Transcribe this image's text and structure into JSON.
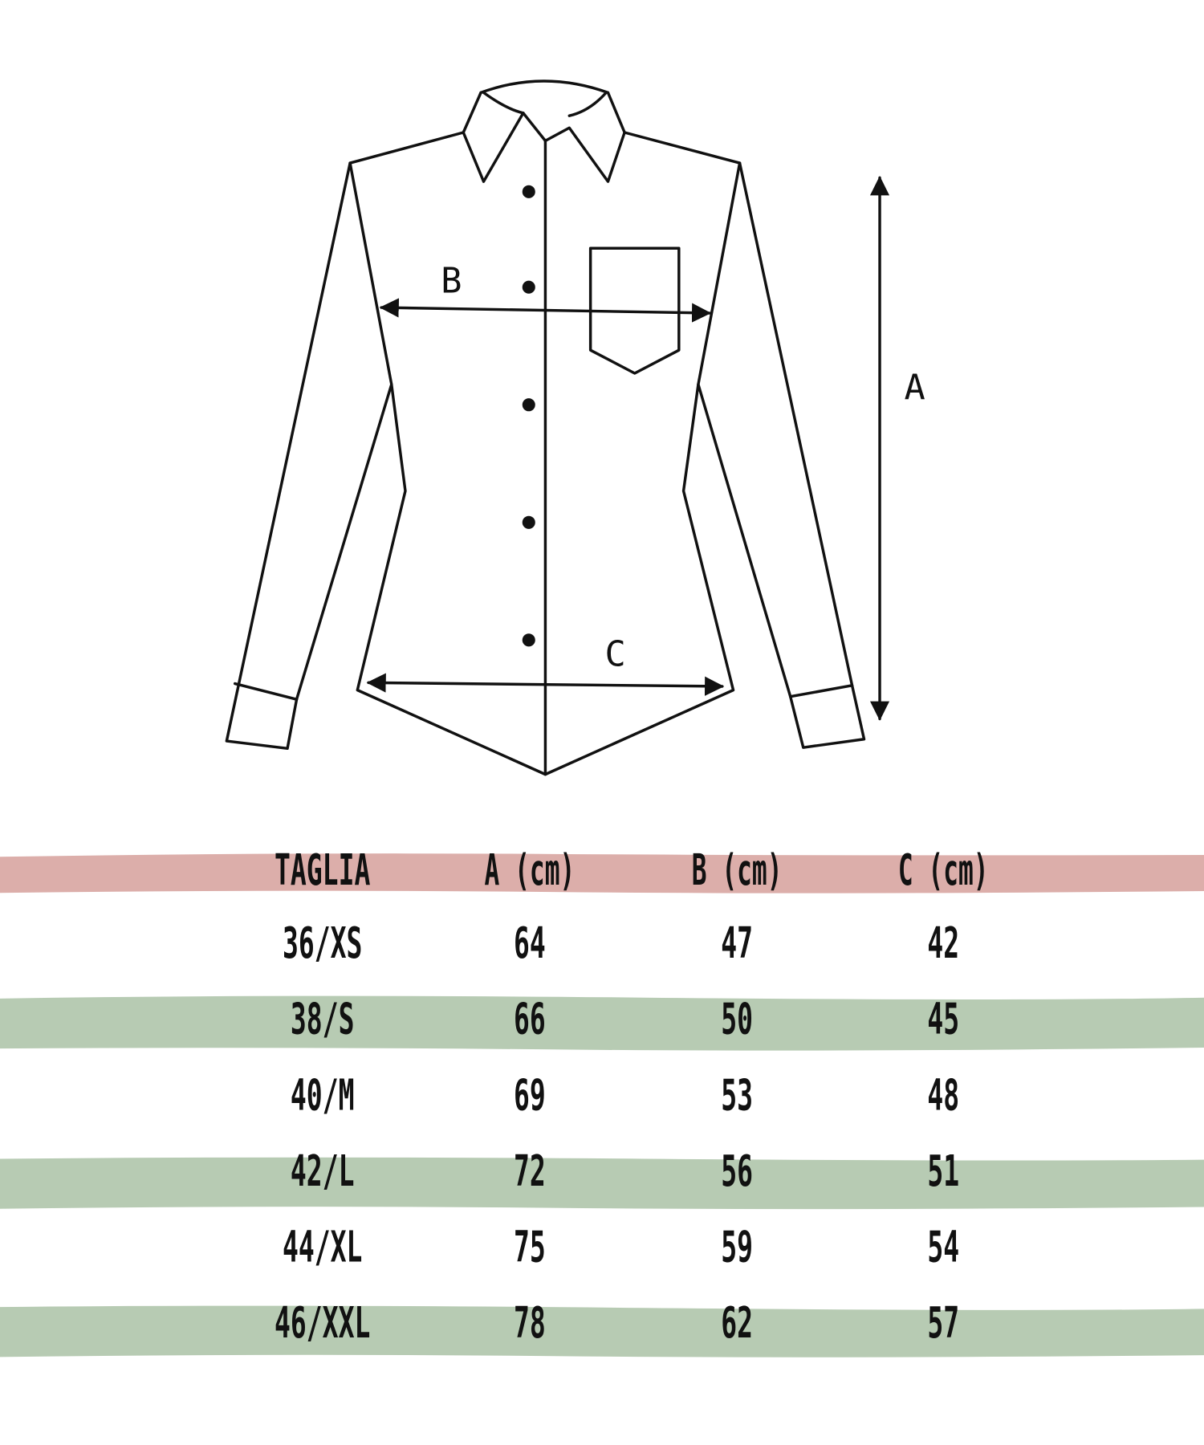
{
  "diagram": {
    "labels": {
      "A": "A",
      "B": "B",
      "C": "C"
    }
  },
  "table": {
    "headers": [
      "TAGLIA",
      "A (cm)",
      "B (cm)",
      "C (cm)"
    ],
    "rows": [
      [
        "36/XS",
        "64",
        "47",
        "42"
      ],
      [
        "38/S",
        "66",
        "50",
        "45"
      ],
      [
        "40/M",
        "69",
        "53",
        "48"
      ],
      [
        "42/L",
        "72",
        "56",
        "51"
      ],
      [
        "44/XL",
        "75",
        "59",
        "54"
      ],
      [
        "46/XXL",
        "78",
        "62",
        "57"
      ]
    ],
    "colors": {
      "header_band": "#dcaeaa",
      "row_band": "#b7cbb3"
    }
  }
}
